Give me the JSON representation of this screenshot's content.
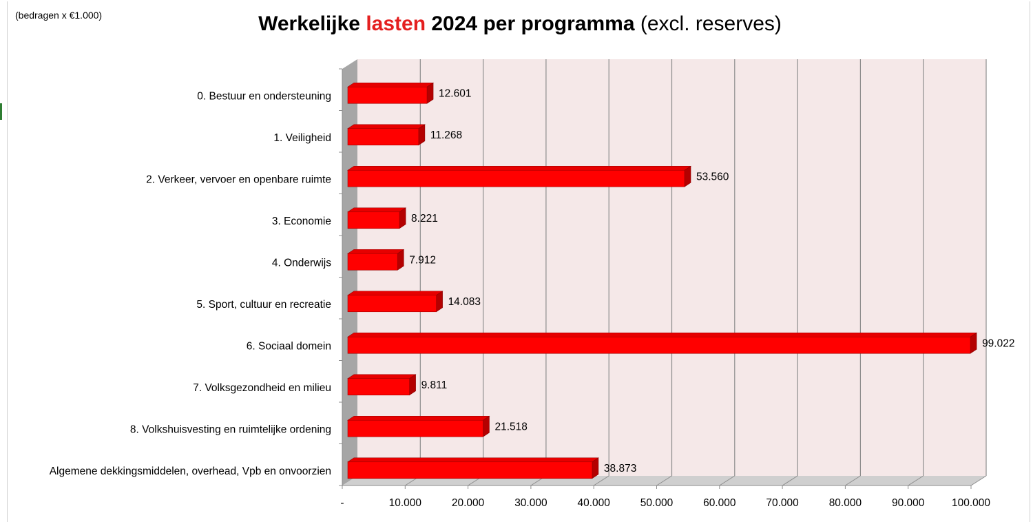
{
  "unit_note": "(bedragen x €1.000)",
  "colors": {
    "bar_front": "#ff0000",
    "bar_top": "#e60000",
    "bar_side": "#b40000",
    "plot_back": "#f5e8e8",
    "floor": "#cfcfcf",
    "side_wall": "#a6a6a6",
    "grid": "#8c8c8c"
  },
  "chart_data": {
    "type": "bar",
    "orientation": "horizontal",
    "style": "3d-clustered",
    "title": {
      "part1": "Werkelijke ",
      "part2": "lasten",
      "part3": " 2024 per programma",
      "part4": " (excl. reserves)"
    },
    "categories": [
      "0. Bestuur en ondersteuning",
      "1. Veiligheid",
      "2. Verkeer, vervoer en openbare ruimte",
      "3. Economie",
      "4. Onderwijs",
      "5. Sport, cultuur en recreatie",
      "6. Sociaal domein",
      "7. Volksgezondheid en milieu",
      "8. Volkshuisvesting en ruimtelijke ordening",
      "Algemene dekkingsmiddelen, overhead, Vpb en onvoorzien"
    ],
    "values": [
      12601,
      11268,
      53560,
      8221,
      7912,
      14083,
      99022,
      9811,
      21518,
      38873
    ],
    "value_labels": [
      "12.601",
      "11.268",
      "53.560",
      "8.221",
      "7.912",
      "14.083",
      "99.022",
      "9.811",
      "21.518",
      "38.873"
    ],
    "xlim": [
      0,
      100000
    ],
    "x_ticks": [
      0,
      10000,
      20000,
      30000,
      40000,
      50000,
      60000,
      70000,
      80000,
      90000,
      100000
    ],
    "x_tick_labels": [
      "-",
      "10.000",
      "20.000",
      "30.000",
      "40.000",
      "50.000",
      "60.000",
      "70.000",
      "80.000",
      "90.000",
      "100.000"
    ],
    "grid": true,
    "legend": "none"
  }
}
